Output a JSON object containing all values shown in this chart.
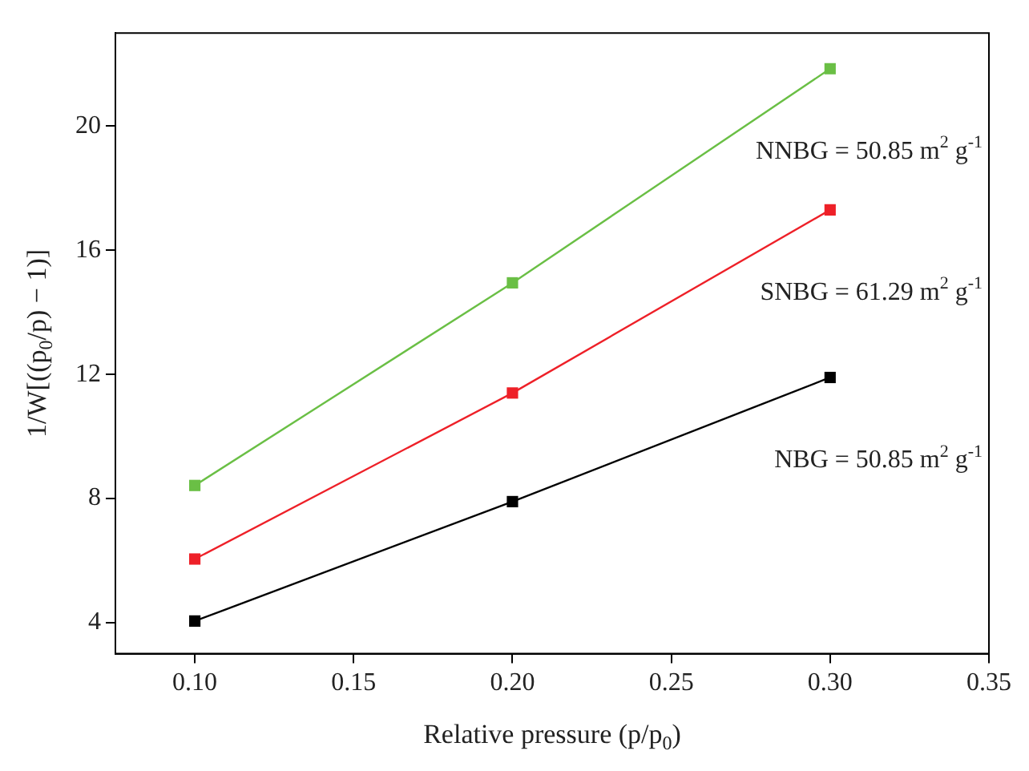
{
  "chart_data": {
    "type": "line",
    "xlabel": "Relative pressure (p/p$_{0}$)",
    "ylabel": "1/W[((p$_{0}$/p) − 1)]",
    "x": [
      0.1,
      0.2,
      0.3
    ],
    "series": [
      {
        "color": "#6abf45",
        "values": [
          8.42,
          14.95,
          21.85
        ]
      },
      {
        "color": "#ee2028",
        "values": [
          6.05,
          11.4,
          17.3
        ]
      },
      {
        "color": "#000000",
        "values": [
          4.05,
          7.9,
          11.9
        ]
      }
    ],
    "annotations": [
      "NNBG = 50.85 m$^{2}$ g$^{-1}$",
      "SNBG = 61.29 m$^{2}$ g$^{-1}$",
      "NBG = 50.85 m$^{2}$ g$^{-1}$"
    ],
    "xlim": [
      0.075,
      0.35
    ],
    "xticks": [
      {
        "value": 0.1,
        "label": "0.10"
      },
      0.15,
      {
        "value": 0.2,
        "label": "0.20"
      },
      0.25,
      {
        "value": 0.3,
        "label": "0.30"
      },
      0.35
    ],
    "ylim": [
      3,
      23
    ],
    "yticks": [
      4,
      8,
      12,
      16,
      20
    ],
    "grid": false,
    "legend": false,
    "marker": "square",
    "line_style": "solid"
  }
}
